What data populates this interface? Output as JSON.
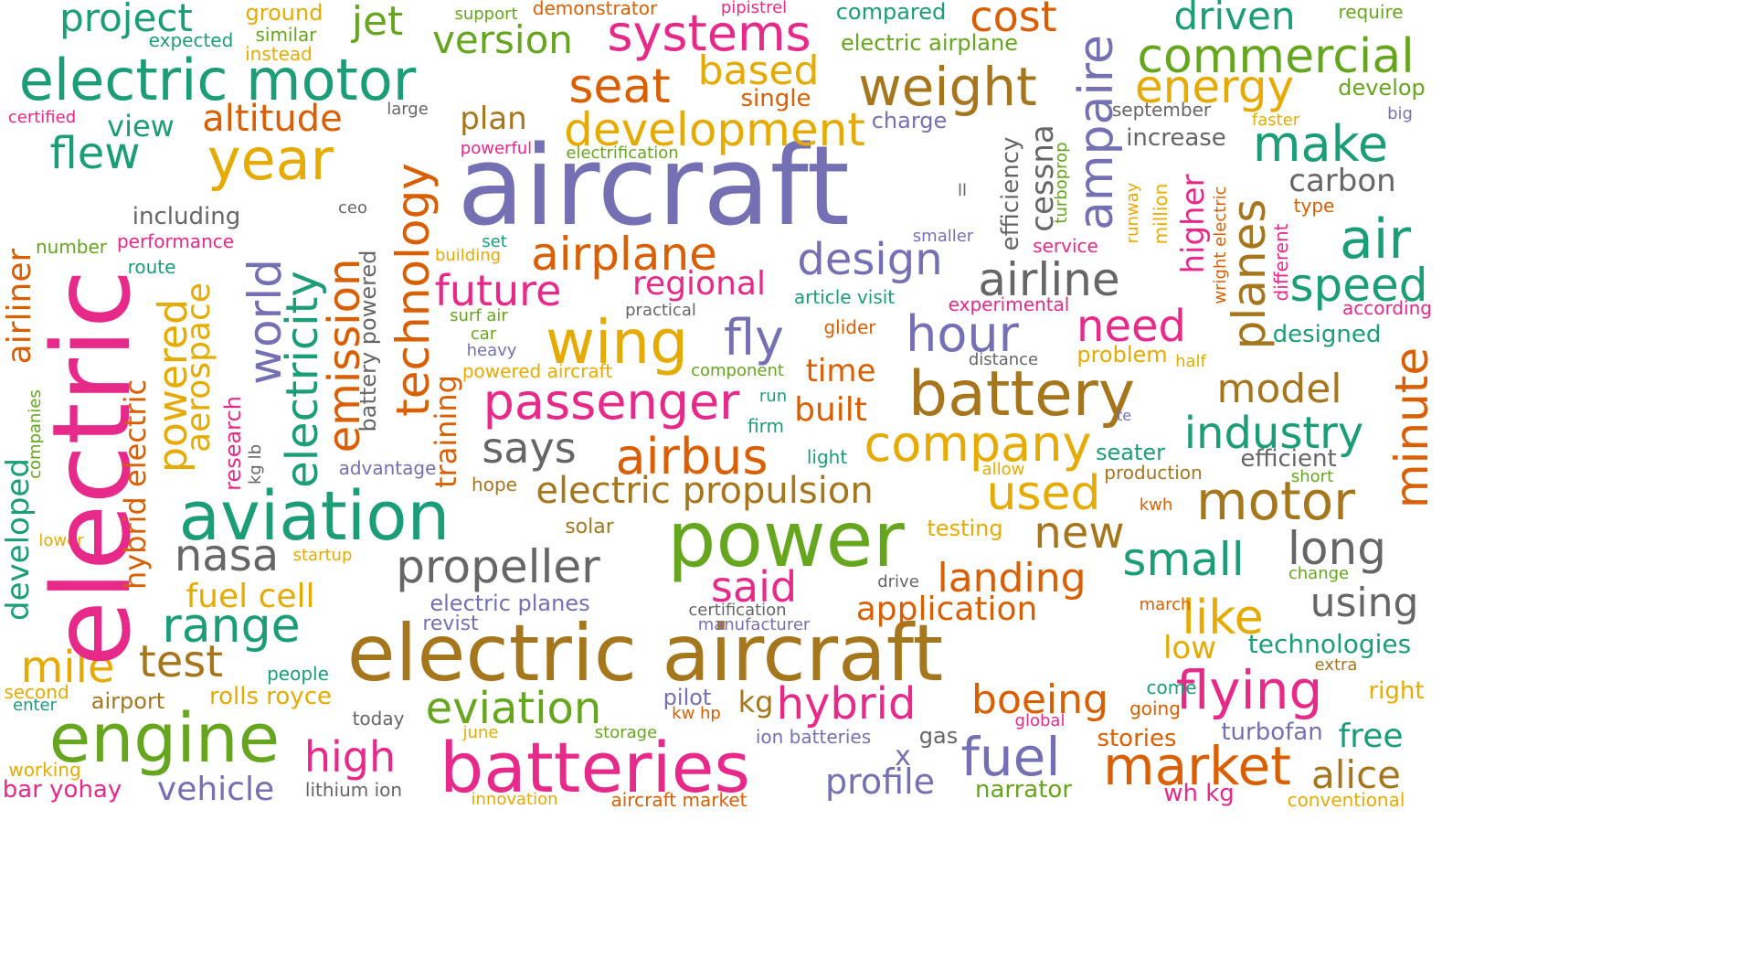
{
  "colors": {
    "teal": "#1b9e77",
    "orange": "#d95f02",
    "purple": "#7570b3",
    "magenta": "#e7298a",
    "green": "#66a61e",
    "yellow": "#e6ab02",
    "brown": "#a6761d",
    "gray": "#666666"
  },
  "words": {
    "aircraft": "aircraft",
    "electric_aircraft": "electric aircraft",
    "electric": "electric",
    "power": "power",
    "batteries": "batteries",
    "aviation": "aviation",
    "engine": "engine",
    "battery": "battery",
    "electric_motor": "electric motor",
    "passenger": "passenger",
    "wing": "wing",
    "year": "year",
    "airbus": "airbus",
    "airline": "airline",
    "airplane": "airplane",
    "hour": "hour",
    "design": "design",
    "development": "development",
    "motor": "motor",
    "company": "company",
    "weight": "weight",
    "systems": "systems",
    "commercial": "commercial",
    "energy": "energy",
    "market": "market",
    "flying": "flying",
    "hybrid": "hybrid",
    "fuel": "fuel",
    "eviation": "eviation",
    "electric_propulsion": "electric propulsion",
    "propeller": "propeller",
    "range": "range",
    "nasa": "nasa",
    "test": "test",
    "mile": "mile",
    "high": "high",
    "boeing": "boeing",
    "says": "says",
    "said": "said",
    "landing": "landing",
    "application": "application",
    "seat": "seat",
    "based": "based",
    "version": "version",
    "project": "project",
    "jet": "jet",
    "cost": "cost",
    "driven": "driven",
    "make": "make",
    "air": "air",
    "speed": "speed",
    "future": "future",
    "regional": "regional",
    "fly": "fly",
    "need": "need",
    "used": "used",
    "new": "new",
    "small": "small",
    "long": "long",
    "using": "using",
    "like": "like",
    "model": "model",
    "industry": "industry",
    "alice": "alice",
    "free": "free",
    "profile": "profile",
    "vehicle": "vehicle",
    "flew": "flew",
    "altitude": "altitude",
    "view": "view",
    "plan": "plan",
    "time": "time",
    "built": "built",
    "fuel_cell": "fuel cell",
    "low": "low",
    "technologies": "technologies",
    "carbon": "carbon",
    "increase": "increase",
    "including": "including",
    "electric_airplane": "electric airplane",
    "single": "single",
    "charge": "charge",
    "september": "september",
    "faster": "faster",
    "big": "big",
    "develop": "develop",
    "require": "require",
    "compared": "compared",
    "pipistrel": "pipistrel",
    "demonstrator": "demonstrator",
    "support": "support",
    "ground": "ground",
    "similar": "similar",
    "instead": "instead",
    "expected": "expected",
    "certified": "certified",
    "large": "large",
    "powerful": "powerful",
    "electrification": "electrification",
    "ceo": "ceo",
    "number": "number",
    "performance": "performance",
    "route": "route",
    "building": "building",
    "set": "set",
    "surf_air": "surf air",
    "car": "car",
    "heavy": "heavy",
    "powered_aircraft": "powered aircraft",
    "practical": "practical",
    "article_visit": "article visit",
    "experimental": "experimental",
    "smaller": "smaller",
    "service": "service",
    "ll": "ll",
    "glider": "glider",
    "distance": "distance",
    "component": "component",
    "problem": "problem",
    "half": "half",
    "designed": "designed",
    "according": "according",
    "type": "type",
    "run": "run",
    "firm": "firm",
    "light": "light",
    "advantage": "advantage",
    "hope": "hope",
    "allow": "allow",
    "seater": "seater",
    "production": "production",
    "efficient": "efficient",
    "short": "short",
    "kwh": "kwh",
    "testing": "testing",
    "solar": "solar",
    "startup": "startup",
    "drive": "drive",
    "electric_planes": "electric planes",
    "revist": "revist",
    "certification": "certification",
    "manufacturer": "manufacturer",
    "change": "change",
    "march": "march",
    "extra": "extra",
    "come": "come",
    "going": "going",
    "right": "right",
    "people": "people",
    "airport": "airport",
    "rolls_royce": "rolls royce",
    "pilot": "pilot",
    "kw_hp": "kw hp",
    "kg": "kg",
    "today": "today",
    "june": "june",
    "storage": "storage",
    "ion_batteries": "ion batteries",
    "gas": "gas",
    "global": "global",
    "stories": "stories",
    "turbofan": "turbofan",
    "x": "x",
    "second": "second",
    "enter": "enter",
    "working": "working",
    "bar_yohay": "bar yohay",
    "lithium_ion": "lithium ion",
    "innovation": "innovation",
    "aircraft_market": "aircraft market",
    "narrator": "narrator",
    "wh_kg": "wh kg",
    "conventional": "conventional",
    "lower": "lower",
    "ampaire": "ampaire",
    "cessna": "cessna",
    "efficiency": "efficiency",
    "turboprop": "turboprop",
    "runway": "runway",
    "million": "million",
    "higher": "higher",
    "wright_electric": "wright electric",
    "different": "different",
    "planes": "planes",
    "minute": "minute",
    "technology": "technology",
    "emission": "emission",
    "electricity": "electricity",
    "world": "world",
    "battery_powered": "battery powered",
    "training": "training",
    "airliner": "airliner",
    "powered": "powered",
    "aerospace": "aerospace",
    "hybrid_electric": "hybrid electric",
    "research": "research",
    "kg_lb": "kg lb",
    "developed": "developed",
    "companies": "companies",
    "te": "te"
  }
}
